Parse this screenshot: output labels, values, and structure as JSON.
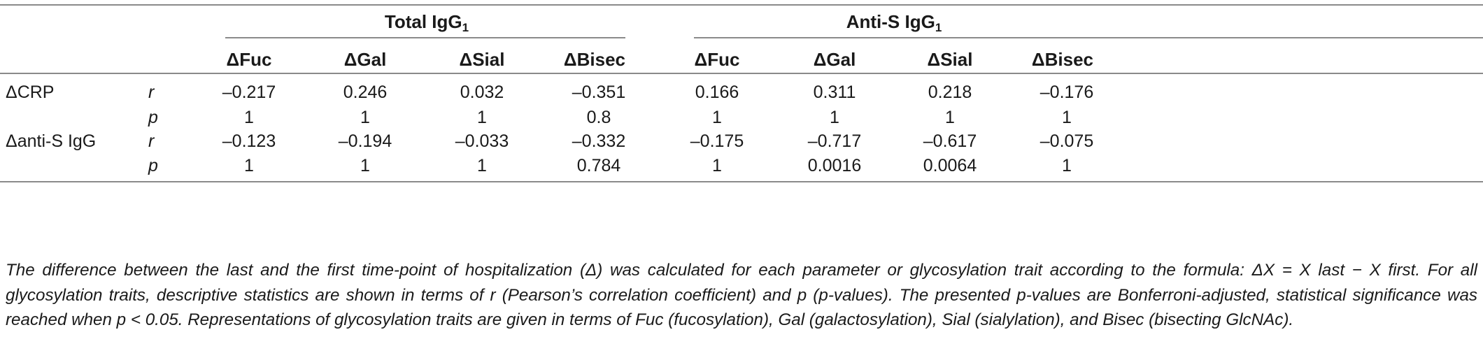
{
  "groups": [
    {
      "name": "Total IgG",
      "sub": "1"
    },
    {
      "name": "Anti-S IgG",
      "sub": "1"
    }
  ],
  "columns": [
    "ΔFuc",
    "ΔGal",
    "ΔSial",
    "ΔBisec",
    "ΔFuc",
    "ΔGal",
    "ΔSial",
    "ΔBisec"
  ],
  "rows": [
    {
      "param": "ΔCRP",
      "stat": "r",
      "values": [
        "–0.217",
        "0.246",
        "0.032",
        "–0.351",
        "0.166",
        "0.311",
        "0.218",
        "–0.176"
      ]
    },
    {
      "param": "",
      "stat": "p",
      "values": [
        "1",
        "1",
        "1",
        "0.8",
        "1",
        "1",
        "1",
        "1"
      ]
    },
    {
      "param": "Δanti-S IgG",
      "stat": "r",
      "values": [
        "–0.123",
        "–0.194",
        "–0.033",
        "–0.332",
        "–0.175",
        "–0.717",
        "–0.617",
        "–0.075"
      ]
    },
    {
      "param": "",
      "stat": "p",
      "values": [
        "1",
        "1",
        "1",
        "0.784",
        "1",
        "0.0016",
        "0.0064",
        "1"
      ]
    }
  ],
  "footnote": "The difference between the last and the first time-point of hospitalization (Δ) was calculated for each parameter or glycosylation trait according to the formula: ΔX = X last − X first. For all glycosylation traits, descriptive statistics are shown in terms of r (Pearson’s correlation coefficient) and p (p-values). The presented p-values are Bonferroni-adjusted, statistical significance was reached when p < 0.05. Representations of glycosylation traits are given in terms of Fuc (fucosylation), Gal (galactosylation), Sial (sialylation), and Bisec (bisecting GlcNAc)."
}
